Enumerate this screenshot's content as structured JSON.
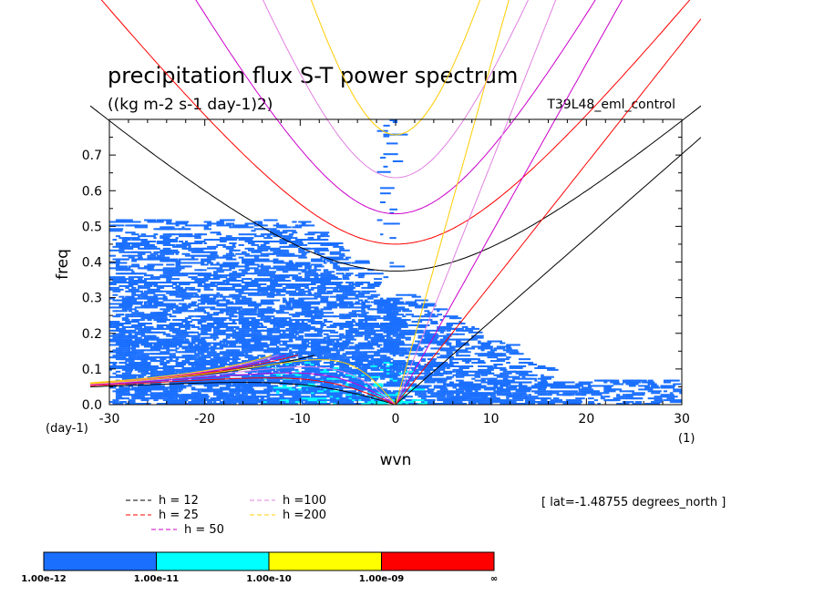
{
  "chart_data": {
    "type": "heatmap",
    "title": "precipitation flux S-T power spectrum",
    "subtitle": "((kg m-2 s-1 day-1)2)",
    "experiment": "T39L48_eml_control",
    "xlabel": "wvn",
    "ylabel": "freq",
    "x_unit": "(1)",
    "y_unit": "(day-1)",
    "xlim": [
      -30,
      30
    ],
    "ylim": [
      0,
      0.8
    ],
    "x_ticks": [
      "-30",
      "-20",
      "-10",
      "0",
      "10",
      "20",
      "30"
    ],
    "y_ticks": [
      "0.0",
      "0.1",
      "0.2",
      "0.3",
      "0.4",
      "0.5",
      "0.6",
      "0.7"
    ],
    "latitude_note": "[ lat=-1.48755 degrees_north ]",
    "dispersion_curves": [
      {
        "label": "h = 12",
        "h": 12,
        "color": "#000000"
      },
      {
        "label": "h = 25",
        "h": 25,
        "color": "#ff0000"
      },
      {
        "label": "h = 50",
        "h": 50,
        "color": "#cc00cc"
      },
      {
        "label": "h =100",
        "h": 100,
        "color": "#e080e0"
      },
      {
        "label": "h =200",
        "h": 200,
        "color": "#ffcc00"
      }
    ],
    "colorbar": {
      "levels": [
        "1.00e-12",
        "1.00e-11",
        "1.00e-10",
        "1.00e-09",
        "∞"
      ],
      "colors": [
        "#1a6fff",
        "#00ffff",
        "#ffff00",
        "#ff0000"
      ]
    }
  }
}
